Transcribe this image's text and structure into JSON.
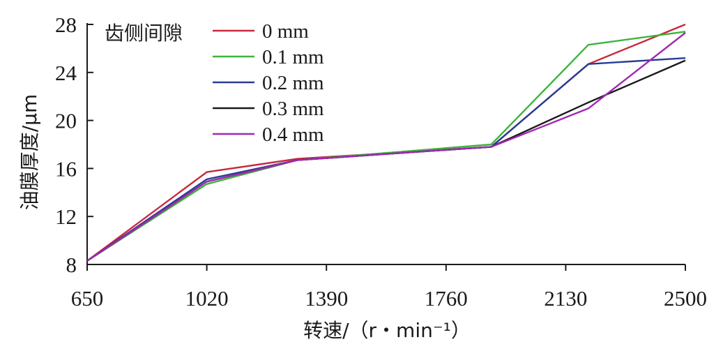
{
  "chart_data": {
    "type": "line",
    "xlabel": "转速/（r・min⁻¹）",
    "ylabel": "油膜厚度/μm",
    "x_ticks": [
      "650",
      "1020",
      "1390",
      "1760",
      "2130",
      "2500"
    ],
    "y_ticks": [
      "8",
      "12",
      "16",
      "20",
      "24",
      "28"
    ],
    "xlim": [
      650,
      2500
    ],
    "ylim": [
      8,
      28
    ],
    "grid": false,
    "legend": {
      "title": "齿侧间隙",
      "placement": "top-left"
    },
    "x": [
      650,
      1020,
      1300,
      1900,
      2200,
      2500
    ],
    "series": [
      {
        "name": "0 mm",
        "color": "#c8283c",
        "values": [
          8.3,
          15.7,
          16.8,
          17.8,
          24.7,
          28.0
        ]
      },
      {
        "name": "0.1 mm",
        "color": "#3cb43c",
        "values": [
          8.3,
          14.7,
          16.7,
          18.0,
          26.3,
          27.4
        ]
      },
      {
        "name": "0.2 mm",
        "color": "#283c96",
        "values": [
          8.3,
          15.1,
          16.7,
          17.8,
          24.7,
          25.2
        ]
      },
      {
        "name": "0.3 mm",
        "color": "#1a1a1a",
        "values": [
          8.3,
          14.9,
          16.7,
          17.8,
          21.5,
          25.0
        ]
      },
      {
        "name": "0.4 mm",
        "color": "#a028b4",
        "values": [
          8.3,
          14.9,
          16.7,
          17.8,
          21.0,
          27.3
        ]
      }
    ]
  }
}
